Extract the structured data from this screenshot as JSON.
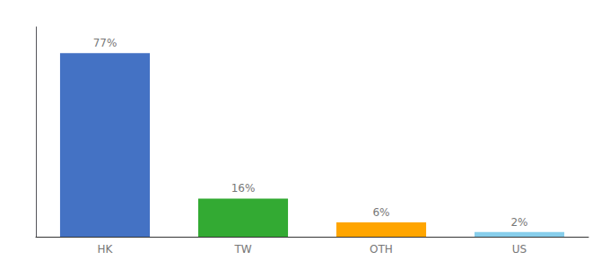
{
  "chart_data": {
    "type": "bar",
    "categories": [
      "HK",
      "TW",
      "OTH",
      "US"
    ],
    "values": [
      77,
      16,
      6,
      2
    ],
    "value_labels": [
      "77%",
      "16%",
      "6%",
      "2%"
    ],
    "colors": [
      "#4472c4",
      "#33aa33",
      "#ffa500",
      "#87ceeb"
    ],
    "ylim": [
      0,
      88
    ],
    "data_labels": true,
    "tick_labels": "x",
    "grid": false
  }
}
